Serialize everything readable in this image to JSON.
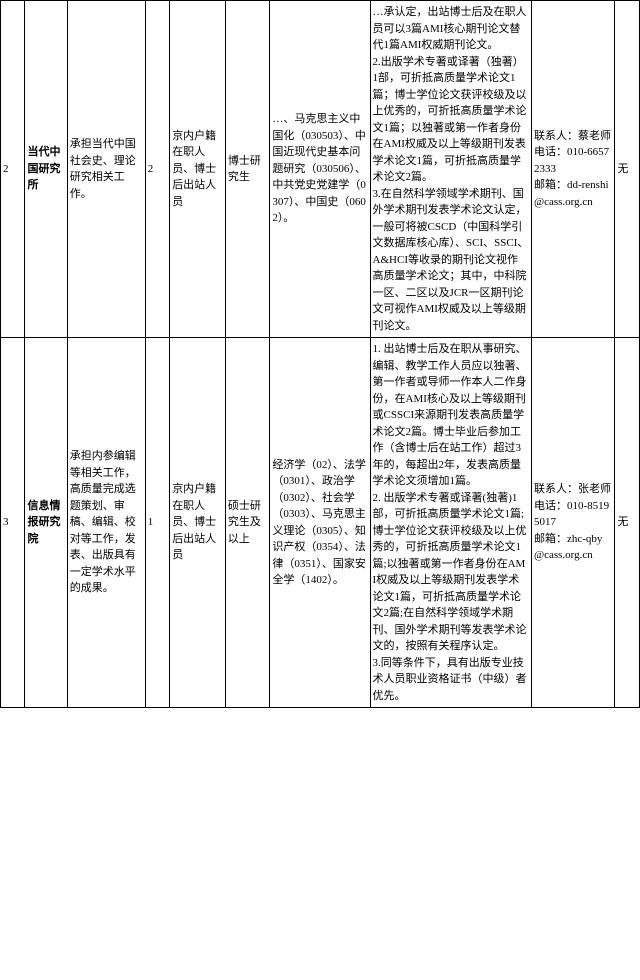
{
  "rows": [
    {
      "num": "2",
      "dept": "当代中国研究所",
      "duty": "承担当代中国社会史、理论研究相关工作。",
      "count": "2",
      "origin": "京内户籍在职人员、博士后出站人员",
      "edu": "博士研究生",
      "major": "…、马克思主义中国化（030503）、中国近现代史基本问题研究（030506）、中共党史党建学（0307）、中国史（0602）。",
      "req": "…承认定，出站博士后及在职人员可以3篇AMI核心期刊论文替代1篇AMI权威期刊论文。\n2.出版学术专著或译著（独著）1部，可折抵高质量学术论文1篇；博士学位论文获评校级及以上优秀的，可折抵高质量学术论文1篇；以独著或第一作者身份在AMI权威及以上等级期刊发表学术论文1篇，可折抵高质量学术论文2篇。\n3.在自然科学领域学术期刊、国外学术期刊发表学术论文认定，一般可将被CSCD（中国科学引文数据库核心库）、SCI、SSCI、A&HCI等收录的期刊论文视作高质量学术论文；其中，中科院一区、二区以及JCR一区期刊论文可视作AMI权威及以上等级期刊论文。",
      "contact": "联系人：蔡老师\n电话：010-66572333\n邮箱：dd-renshi@cass.org.cn",
      "note": "无"
    },
    {
      "num": "3",
      "dept": "信息情报研究院",
      "duty": "承担内参编辑等相关工作，高质量完成选题策划、审稿、编辑、校对等工作，发表、出版具有一定学术水平的成果。",
      "count": "1",
      "origin": "京内户籍在职人员、博士后出站人员",
      "edu": "硕士研究生及以上",
      "major": "经济学（02）、法学（0301）、政治学（0302）、社会学（0303）、马克思主义理论（0305）、知识产权（0354）、法律（0351）、国家安全学（1402）。",
      "req": "1. 出站博士后及在职从事研究、编辑、教学工作人员应以独著、第一作者或导师一作本人二作身份，在AMI核心及以上等级期刊或CSSCI来源期刊发表高质量学术论文2篇。博士毕业后参加工作（含博士后在站工作）超过3年的，每超出2年，发表高质量学术论文须增加1篇。\n2. 出版学术专著或译著(独著)1部，可折抵高质量学术论文1篇;博士学位论文获评校级及以上优秀的，可折抵高质量学术论文1篇;以独著或第一作者身份在AMI权威及以上等级期刊发表学术论文1篇，可折抵高质量学术论文2篇;在自然科学领域学术期刊、国外学术期刊等发表学术论文的，按照有关程序认定。\n3.同等条件下，具有出版专业技术人员职业资格证书（中级）者优先。",
      "contact": "联系人：张老师\n电话：010-85195017\n邮箱：zhc-qby@cass.org.cn",
      "note": "无"
    }
  ]
}
